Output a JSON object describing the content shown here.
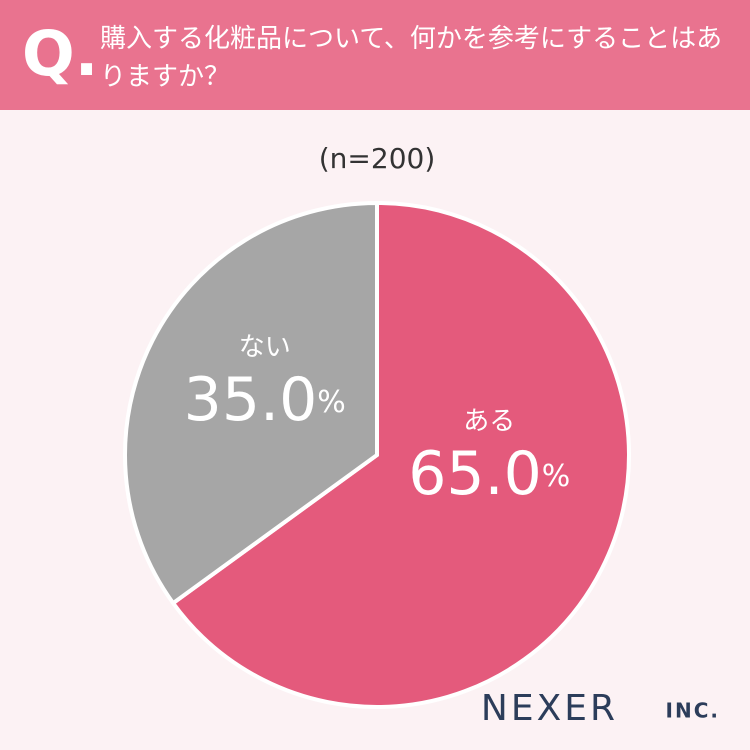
{
  "chart_data": {
    "type": "pie",
    "question_label": "Q.",
    "title": "購入する化粧品について、何かを参考にすることはありますか？",
    "subtitle": "(n=200)",
    "categories": [
      "ある",
      "ない"
    ],
    "values": [
      65.0,
      35.0
    ],
    "value_labels": [
      "65.0%",
      "35.0%"
    ],
    "colors": [
      "#e45a7c",
      "#a6a6a6"
    ],
    "brand": "NEXER",
    "brand_suffix": "INC."
  }
}
